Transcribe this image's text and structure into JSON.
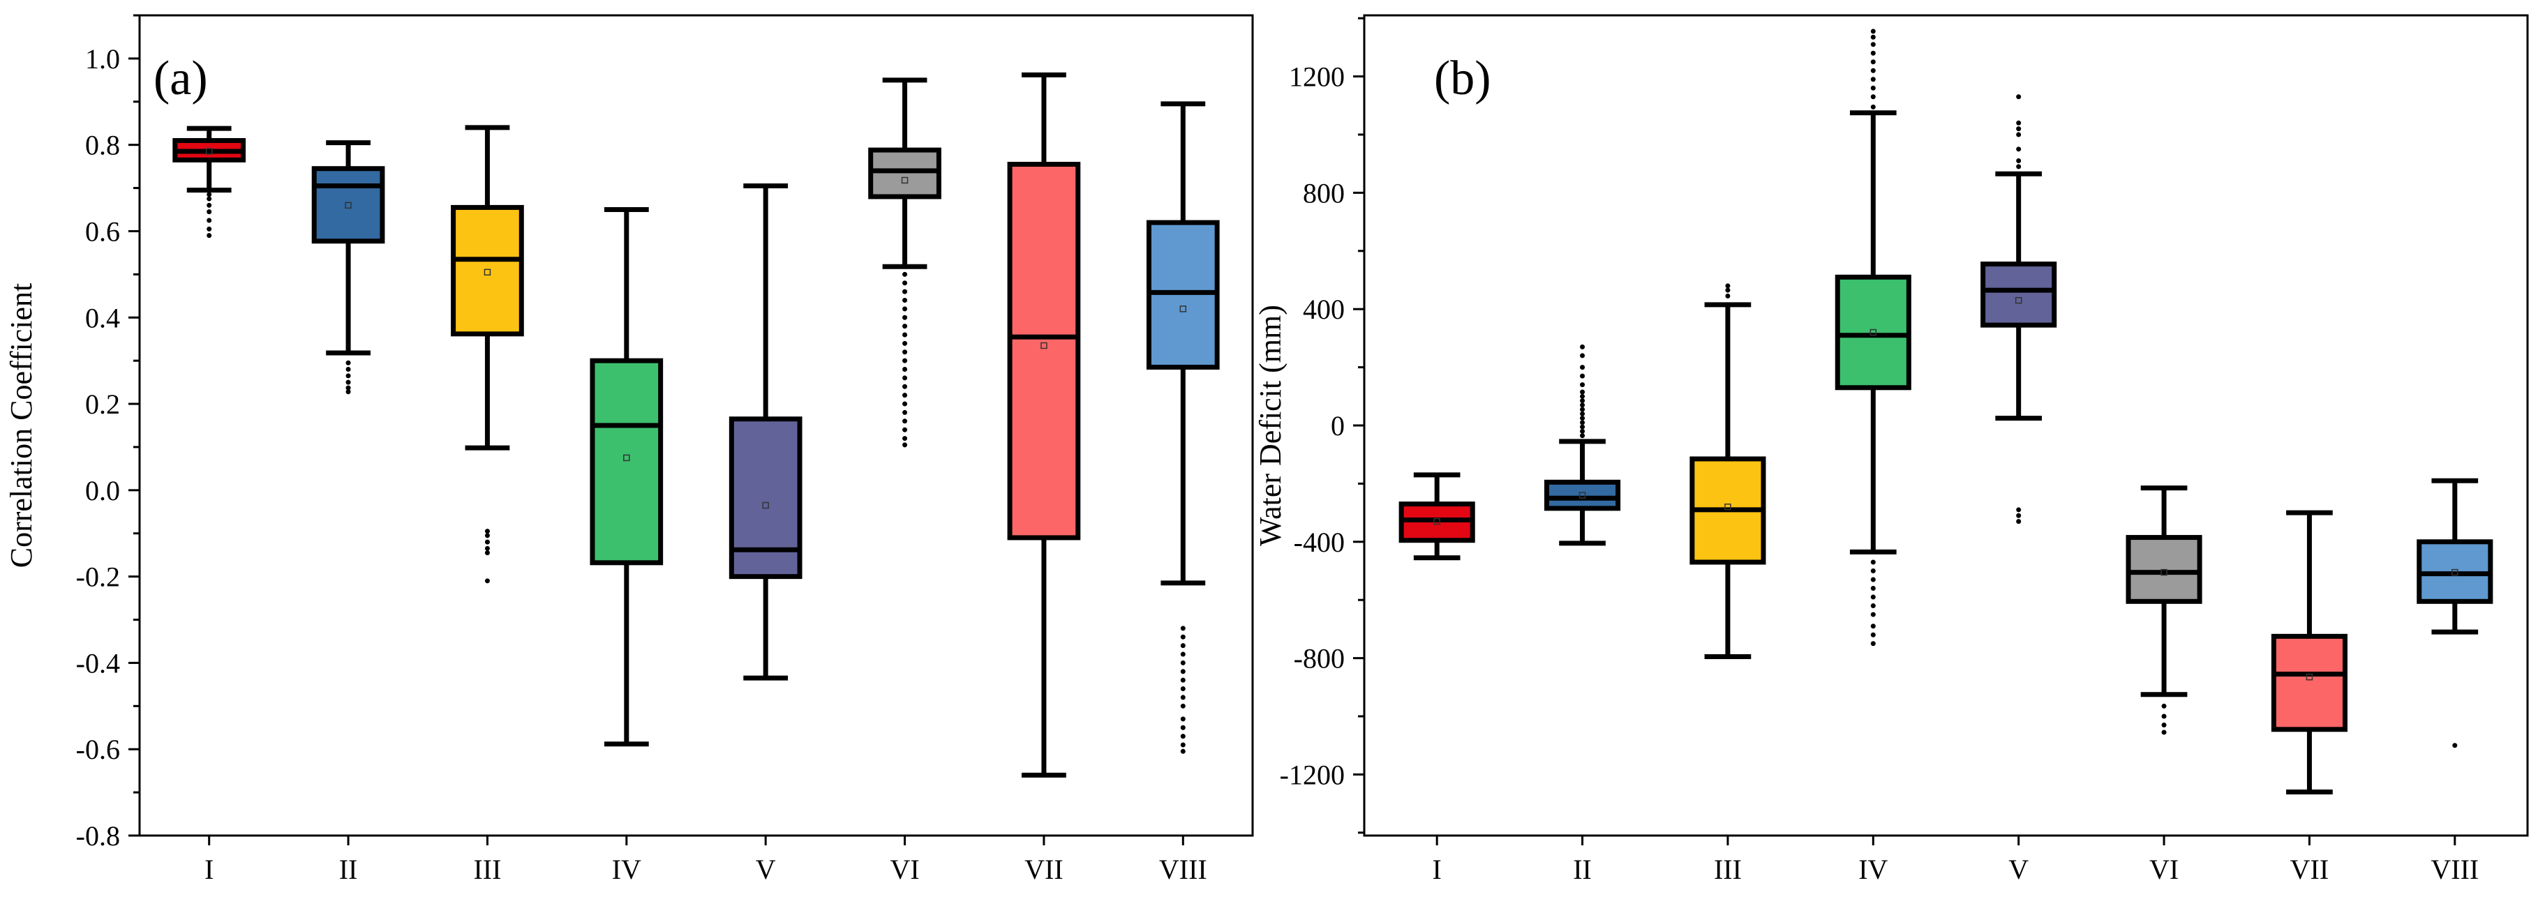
{
  "chart_data": [
    {
      "type": "box",
      "panel_label": "(a)",
      "ylabel": "Correlation Coefficient",
      "xlabel": "",
      "ylim": [
        -0.8,
        1.1
      ],
      "yticks": [
        -0.8,
        -0.6,
        -0.4,
        -0.2,
        0.0,
        0.2,
        0.4,
        0.6,
        0.8,
        1.0
      ],
      "ytick_labels": [
        "-0.8",
        "-0.6",
        "-0.4",
        "-0.2",
        "0.0",
        "0.2",
        "0.4",
        "0.6",
        "0.8",
        "1.0"
      ],
      "minor_ticks": true,
      "categories": [
        "I",
        "II",
        "III",
        "IV",
        "V",
        "VI",
        "VII",
        "VIII"
      ],
      "boxes": [
        {
          "whisker_low": 0.695,
          "q1": 0.765,
          "median": 0.785,
          "q3": 0.81,
          "whisker_high": 0.838,
          "mean": 0.785,
          "outliers": [
            0.685,
            0.675,
            0.66,
            0.645,
            0.625,
            0.605,
            0.59
          ]
        },
        {
          "whisker_low": 0.318,
          "q1": 0.577,
          "median": 0.705,
          "q3": 0.745,
          "whisker_high": 0.805,
          "mean": 0.66,
          "outliers": [
            0.295,
            0.28,
            0.265,
            0.25,
            0.237,
            0.228
          ]
        },
        {
          "whisker_low": 0.098,
          "q1": 0.362,
          "median": 0.535,
          "q3": 0.655,
          "whisker_high": 0.84,
          "mean": 0.505,
          "outliers": [
            -0.095,
            -0.105,
            -0.12,
            -0.135,
            -0.145,
            -0.21
          ]
        },
        {
          "whisker_low": -0.588,
          "q1": -0.168,
          "median": 0.15,
          "q3": 0.3,
          "whisker_high": 0.65,
          "mean": 0.075,
          "outliers": []
        },
        {
          "whisker_low": -0.435,
          "q1": -0.2,
          "median": -0.138,
          "q3": 0.165,
          "whisker_high": 0.705,
          "mean": -0.035,
          "outliers": []
        },
        {
          "whisker_low": 0.518,
          "q1": 0.68,
          "median": 0.74,
          "q3": 0.788,
          "whisker_high": 0.95,
          "mean": 0.718,
          "outliers": [
            0.5,
            0.48,
            0.46,
            0.44,
            0.42,
            0.4,
            0.38,
            0.36,
            0.34,
            0.32,
            0.3,
            0.28,
            0.26,
            0.24,
            0.22,
            0.2,
            0.18,
            0.16,
            0.14,
            0.12,
            0.105
          ]
        },
        {
          "whisker_low": -0.66,
          "q1": -0.11,
          "median": 0.355,
          "q3": 0.755,
          "whisker_high": 0.962,
          "mean": 0.335,
          "outliers": []
        },
        {
          "whisker_low": -0.215,
          "q1": 0.285,
          "median": 0.458,
          "q3": 0.62,
          "whisker_high": 0.895,
          "mean": 0.42,
          "outliers": [
            -0.32,
            -0.34,
            -0.36,
            -0.38,
            -0.4,
            -0.42,
            -0.44,
            -0.46,
            -0.48,
            -0.5,
            -0.53,
            -0.55,
            -0.57,
            -0.59,
            -0.605
          ]
        }
      ]
    },
    {
      "type": "box",
      "panel_label": "(b)",
      "ylabel": "Water Deficit (mm)",
      "xlabel": "",
      "ylim": [
        -1410,
        1410
      ],
      "yticks": [
        -1200,
        -800,
        -400,
        0,
        400,
        800,
        1200
      ],
      "ytick_labels": [
        "-1200",
        "-800",
        "-400",
        "0",
        "400",
        "800",
        "1200"
      ],
      "minor_ticks": true,
      "categories": [
        "I",
        "II",
        "III",
        "IV",
        "V",
        "VI",
        "VII",
        "VIII"
      ],
      "boxes": [
        {
          "whisker_low": -455,
          "q1": -395,
          "median": -325,
          "q3": -270,
          "whisker_high": -170,
          "mean": -330,
          "outliers": []
        },
        {
          "whisker_low": -405,
          "q1": -285,
          "median": -250,
          "q3": -195,
          "whisker_high": -55,
          "mean": -240,
          "outliers": [
            -35,
            -20,
            -5,
            10,
            25,
            40,
            55,
            70,
            85,
            100,
            115,
            140,
            170,
            200,
            240,
            270
          ]
        },
        {
          "whisker_low": -795,
          "q1": -470,
          "median": -290,
          "q3": -115,
          "whisker_high": 415,
          "mean": -280,
          "outliers": [
            445,
            465,
            480
          ]
        },
        {
          "whisker_low": -435,
          "q1": 130,
          "median": 310,
          "q3": 510,
          "whisker_high": 1075,
          "mean": 320,
          "outliers": [
            -470,
            -500,
            -530,
            -560,
            -590,
            -620,
            -650,
            -690,
            -720,
            -750,
            1095,
            1130,
            1160,
            1190,
            1220,
            1250,
            1280,
            1310,
            1335,
            1355
          ]
        },
        {
          "whisker_low": 25,
          "q1": 345,
          "median": 465,
          "q3": 555,
          "whisker_high": 865,
          "mean": 430,
          "outliers": [
            -290,
            -310,
            -330,
            890,
            910,
            950,
            1000,
            1020,
            1040,
            1130
          ]
        },
        {
          "whisker_low": -925,
          "q1": -605,
          "median": -505,
          "q3": -385,
          "whisker_high": -215,
          "mean": -505,
          "outliers": [
            -965,
            -1000,
            -1030,
            -1055
          ]
        },
        {
          "whisker_low": -1260,
          "q1": -1045,
          "median": -855,
          "q3": -725,
          "whisker_high": -300,
          "mean": -865,
          "outliers": []
        },
        {
          "whisker_low": -710,
          "q1": -605,
          "median": -510,
          "q3": -400,
          "whisker_high": -190,
          "mean": -505,
          "outliers": [
            -1100
          ]
        }
      ]
    }
  ],
  "colors": {
    "I": "#e30613",
    "II": "#336aa1",
    "III": "#fdc313",
    "IV": "#3cc06e",
    "V": "#626399",
    "VI": "#9b9b9b",
    "VII": "#fd6666",
    "VIII": "#5f99d0",
    "stroke": "#000000"
  }
}
